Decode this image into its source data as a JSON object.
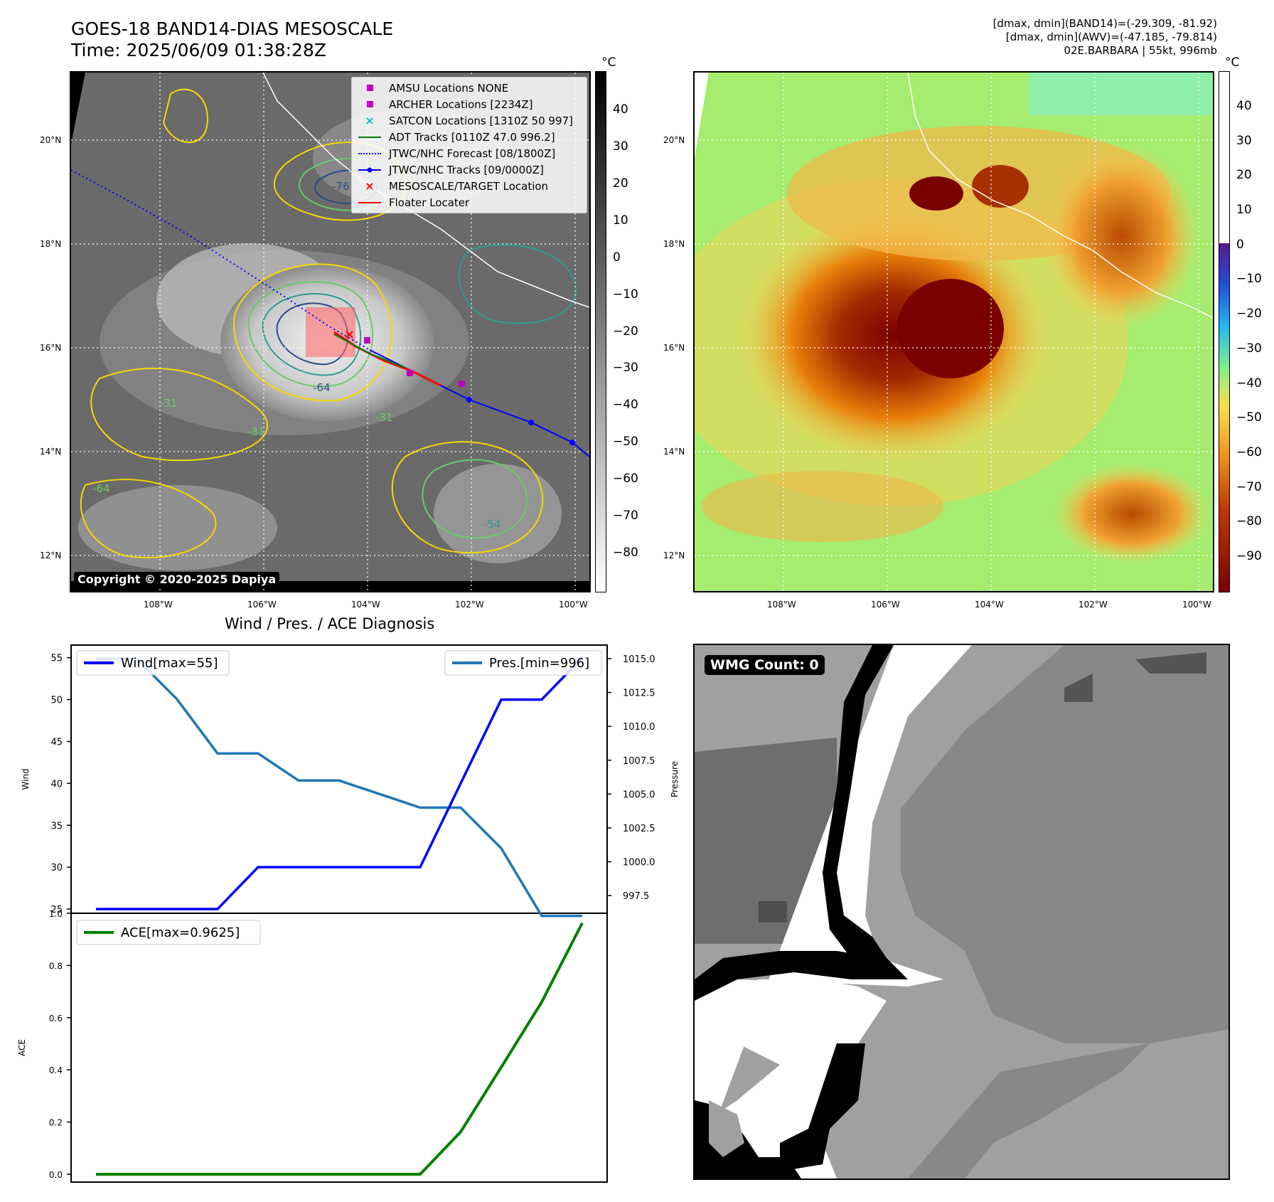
{
  "header": {
    "title_line1": "GOES-18 BAND14-DIAS MESOSCALE",
    "title_line2": "Time: 2025/06/09 01:38:28Z",
    "right_line1": "[dmax, dmin](BAND14)=(-29.309, -81.92)",
    "right_line2": "[dmax, dmin](AWV)=(-47.185, -79.814)",
    "right_line3": "02E.BARBARA | 55kt, 996mb"
  },
  "map": {
    "lon_labels": [
      "108°W",
      "106°W",
      "104°W",
      "102°W",
      "100°W"
    ],
    "lat_labels": [
      "20°N",
      "18°N",
      "16°N",
      "14°N",
      "12°N"
    ],
    "copyright": "Copyright © 2020-2025 Dapiya",
    "contour_labels": [
      "-64",
      "-76",
      "-31",
      "-31",
      "-31",
      "-54",
      "-64"
    ],
    "legend": [
      {
        "label": "AMSU Locations NONE",
        "symbol": "square",
        "color": "#bf00bf"
      },
      {
        "label": "ARCHER Locations [2234Z]",
        "symbol": "square",
        "color": "#bf00bf"
      },
      {
        "label": "SATCON Locations [1310Z 50 997]",
        "symbol": "x",
        "color": "#00bfbf"
      },
      {
        "label": "ADT Tracks [0110Z 47.0 996.2]",
        "symbol": "line",
        "color": "#008000"
      },
      {
        "label": "JTWC/NHC Forecast [08/1800Z]",
        "symbol": "dotted",
        "color": "#0000ff"
      },
      {
        "label": "JTWC/NHC Tracks [09/0000Z]",
        "symbol": "dotline",
        "color": "#0000ff"
      },
      {
        "label": "MESOSCALE/TARGET Location",
        "symbol": "x",
        "color": "#ff0000"
      },
      {
        "label": "Floater Locater",
        "symbol": "line",
        "color": "#ff0000"
      }
    ]
  },
  "colorbar_left": {
    "unit": "°C",
    "ticks": [
      "40",
      "30",
      "20",
      "10",
      "0",
      "−10",
      "−20",
      "−30",
      "−40",
      "−50",
      "−60",
      "−70",
      "−80"
    ]
  },
  "colorbar_right": {
    "unit": "°C",
    "ticks": [
      "40",
      "30",
      "20",
      "10",
      "0",
      "−10",
      "−20",
      "−30",
      "−40",
      "−50",
      "−60",
      "−70",
      "−80",
      "−90"
    ]
  },
  "wmg": {
    "label": "WMG Count: 0"
  },
  "chart_data": [
    {
      "type": "line",
      "title": "Wind / Pres. / ACE Diagnosis",
      "ylabel": "Wind",
      "y2label": "Pressure",
      "ylim": [
        24.5,
        56.5
      ],
      "y2lim": [
        996.2,
        1016.0
      ],
      "yticks": [
        "55",
        "50",
        "45",
        "40",
        "35",
        "30",
        "25"
      ],
      "y2ticks": [
        "1015.0",
        "1012.5",
        "1010.0",
        "1007.5",
        "1005.0",
        "1002.5",
        "1000.0",
        "997.5"
      ],
      "x": [
        0,
        1,
        2,
        3,
        4,
        5,
        6,
        7,
        8,
        9,
        10,
        11,
        12
      ],
      "series": [
        {
          "name": "Wind[max=55]",
          "axis": "left",
          "color": "#0000ff",
          "values": [
            25,
            25,
            25,
            25,
            30,
            30,
            30,
            30,
            30,
            40,
            50,
            50,
            55
          ]
        },
        {
          "name": "Pres.[min=996]",
          "axis": "right",
          "color": "#1f77b4",
          "values": [
            1015,
            1015,
            1012,
            1008,
            1008,
            1006,
            1006,
            1005,
            1004,
            1004,
            1001,
            996,
            996
          ]
        }
      ]
    },
    {
      "type": "line",
      "ylabel": "ACE",
      "ylim": [
        -0.03,
        1.0
      ],
      "yticks": [
        "1.0",
        "0.8",
        "0.6",
        "0.4",
        "0.2",
        "0.0"
      ],
      "x": [
        0,
        1,
        2,
        3,
        4,
        5,
        6,
        7,
        8,
        9,
        10,
        11,
        12
      ],
      "series": [
        {
          "name": "ACE[max=0.9625]",
          "color": "#008000",
          "values": [
            0,
            0,
            0,
            0,
            0,
            0,
            0,
            0,
            0,
            0.1625,
            0.41,
            0.66,
            0.9625
          ]
        }
      ]
    }
  ]
}
